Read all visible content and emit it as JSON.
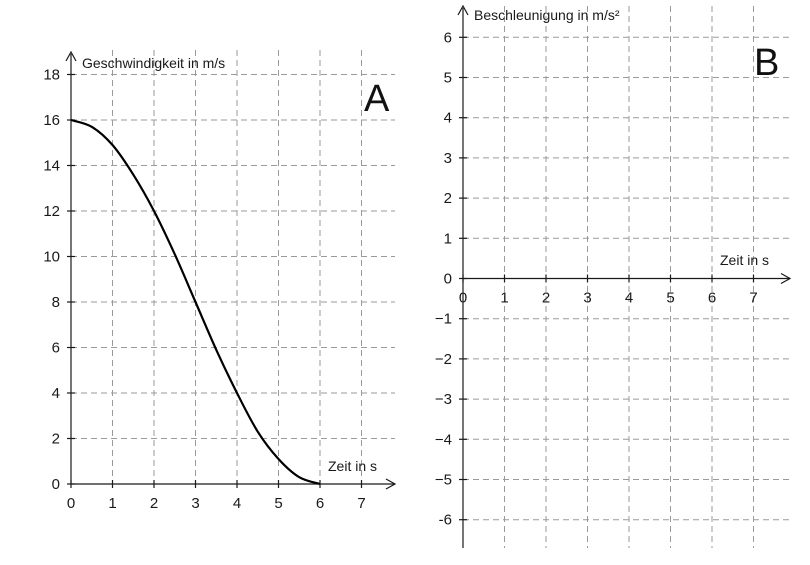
{
  "chart_data": [
    {
      "type": "line",
      "panel_label": "A",
      "xlabel": "Zeit in s",
      "ylabel": "Geschwindigkeit in m/s",
      "xlim": [
        0,
        7.8
      ],
      "ylim": [
        0,
        19
      ],
      "x_ticks": [
        "0",
        "1",
        "2",
        "3",
        "4",
        "5",
        "6",
        "7"
      ],
      "y_ticks": [
        "0",
        "2",
        "4",
        "6",
        "8",
        "10",
        "12",
        "14",
        "16",
        "18"
      ],
      "grid": true,
      "series": [
        {
          "x": [
            0,
            0.5,
            1,
            1.5,
            2,
            2.5,
            3,
            3.5,
            4,
            4.5,
            5,
            5.5,
            6
          ],
          "y": [
            16,
            15.7,
            14.9,
            13.6,
            12,
            10.1,
            8,
            5.9,
            4,
            2.3,
            1.1,
            0.3,
            0
          ]
        }
      ]
    },
    {
      "type": "line",
      "panel_label": "B",
      "xlabel": "Zeit in s",
      "ylabel": "Beschleunigung in m/s²",
      "xlim": [
        -0.3,
        7.8
      ],
      "ylim": [
        -6.8,
        6.8
      ],
      "x_ticks": [
        "0",
        "1",
        "2",
        "3",
        "4",
        "5",
        "6",
        "7"
      ],
      "y_ticks": [
        "-6",
        "−5",
        "−4",
        "−3",
        "−2",
        "−1",
        "0",
        "1",
        "2",
        "3",
        "4",
        "5",
        "6"
      ],
      "grid": true,
      "series": []
    }
  ]
}
